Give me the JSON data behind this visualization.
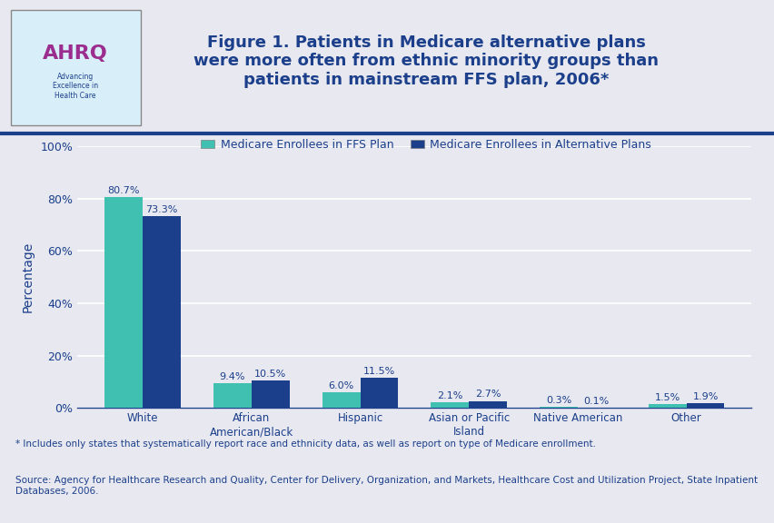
{
  "title": "Figure 1. Patients in Medicare alternative plans\nwere more often from ethnic minority groups than\npatients in mainstream FFS plan, 2006*",
  "categories": [
    "White",
    "African\nAmerican/Black",
    "Hispanic",
    "Asian or Pacific\nIsland",
    "Native American",
    "Other"
  ],
  "ffs_values": [
    80.7,
    9.4,
    6.0,
    2.1,
    0.3,
    1.5
  ],
  "alt_values": [
    73.3,
    10.5,
    11.5,
    2.7,
    0.1,
    1.9
  ],
  "ffs_color": "#40C0B0",
  "alt_color": "#1B3F8B",
  "ffs_label": "Medicare Enrollees in FFS Plan",
  "alt_label": "Medicare Enrollees in Alternative Plans",
  "ylabel": "Percentage",
  "ylim": [
    0,
    100
  ],
  "yticks": [
    0,
    20,
    40,
    60,
    80,
    100
  ],
  "background_color": "#E8E8F0",
  "plot_bg_color": "#E8E8F0",
  "title_color": "#1B3F8B",
  "footer_note": "* Includes only states that systematically report race and ethnicity data, as well as report on type of Medicare enrollment.",
  "footer_source": "Source: Agency for Healthcare Research and Quality, Center for Delivery, Organization, and Markets, Healthcare Cost and Utilization Project, State Inpatient\nDatabases, 2006.",
  "bar_width": 0.35,
  "grid_color": "#FFFFFF",
  "label_fontsize": 8.5,
  "value_fontsize": 8,
  "title_fontsize": 13
}
